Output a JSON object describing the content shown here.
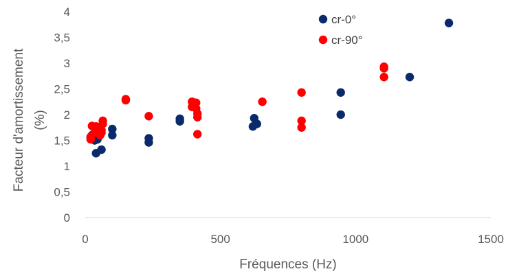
{
  "chart_data": {
    "type": "scatter",
    "title": "",
    "xlabel": "Fréquences (Hz)",
    "ylabel_lines": [
      "Facteur d'amortissement",
      "(%)"
    ],
    "xlim": [
      0,
      1500
    ],
    "ylim": [
      0,
      4
    ],
    "x_ticks": [
      "0",
      "500",
      "1000",
      "1500"
    ],
    "y_ticks": [
      "0",
      "0,5",
      "1",
      "1,5",
      "2",
      "2,5",
      "3",
      "3,5",
      "4"
    ],
    "grid": false,
    "legend_position": "top-right",
    "series": [
      {
        "name": "cr-0°",
        "color": "#0b2a6b",
        "points": [
          [
            20,
            1.55
          ],
          [
            25,
            1.6
          ],
          [
            30,
            1.62
          ],
          [
            35,
            1.5
          ],
          [
            40,
            1.25
          ],
          [
            45,
            1.52
          ],
          [
            55,
            1.62
          ],
          [
            60,
            1.32
          ],
          [
            100,
            1.6
          ],
          [
            100,
            1.72
          ],
          [
            235,
            1.46
          ],
          [
            235,
            1.54
          ],
          [
            350,
            1.87
          ],
          [
            350,
            1.92
          ],
          [
            620,
            1.77
          ],
          [
            625,
            1.93
          ],
          [
            635,
            1.82
          ],
          [
            945,
            2.0
          ],
          [
            945,
            2.43
          ],
          [
            1200,
            2.73
          ],
          [
            1345,
            3.78
          ]
        ]
      },
      {
        "name": "cr-90°",
        "color": "#ff0000",
        "points": [
          [
            20,
            1.52
          ],
          [
            20,
            1.57
          ],
          [
            25,
            1.78
          ],
          [
            35,
            1.65
          ],
          [
            40,
            1.77
          ],
          [
            45,
            1.72
          ],
          [
            55,
            1.6
          ],
          [
            60,
            1.7
          ],
          [
            60,
            1.65
          ],
          [
            65,
            1.88
          ],
          [
            65,
            1.82
          ],
          [
            150,
            2.28
          ],
          [
            150,
            2.3
          ],
          [
            235,
            1.97
          ],
          [
            395,
            2.25
          ],
          [
            395,
            2.15
          ],
          [
            400,
            2.18
          ],
          [
            410,
            2.23
          ],
          [
            410,
            2.12
          ],
          [
            415,
            1.95
          ],
          [
            415,
            2.02
          ],
          [
            415,
            1.62
          ],
          [
            655,
            2.25
          ],
          [
            800,
            2.43
          ],
          [
            800,
            1.88
          ],
          [
            800,
            1.75
          ],
          [
            1105,
            2.93
          ],
          [
            1105,
            2.9
          ],
          [
            1105,
            2.73
          ]
        ]
      }
    ]
  }
}
